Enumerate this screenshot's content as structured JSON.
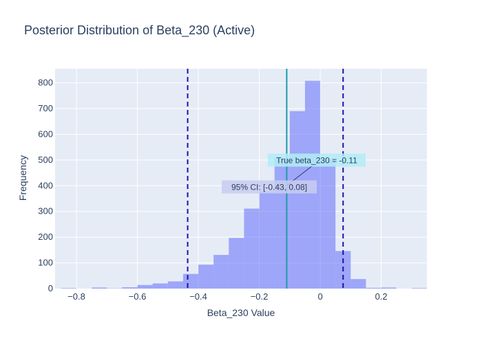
{
  "chart_data": {
    "type": "bar",
    "title": "Posterior Distribution of Beta_230 (Active)",
    "xlabel": "Beta_230 Value",
    "ylabel": "Frequency",
    "xlim": [
      -0.87,
      0.35
    ],
    "ylim": [
      0,
      855
    ],
    "xticks": [
      -0.8,
      -0.6,
      -0.4,
      -0.2,
      0,
      0.2
    ],
    "yticks": [
      0,
      100,
      200,
      300,
      400,
      500,
      600,
      700,
      800
    ],
    "bin_width": 0.05,
    "bins": [
      {
        "x0": -0.85,
        "x1": -0.8,
        "count": 2
      },
      {
        "x0": -0.8,
        "x1": -0.75,
        "count": 0
      },
      {
        "x0": -0.75,
        "x1": -0.7,
        "count": 4
      },
      {
        "x0": -0.7,
        "x1": -0.65,
        "count": 1
      },
      {
        "x0": -0.65,
        "x1": -0.6,
        "count": 5
      },
      {
        "x0": -0.6,
        "x1": -0.55,
        "count": 14
      },
      {
        "x0": -0.55,
        "x1": -0.5,
        "count": 20
      },
      {
        "x0": -0.5,
        "x1": -0.45,
        "count": 28
      },
      {
        "x0": -0.45,
        "x1": -0.4,
        "count": 57
      },
      {
        "x0": -0.4,
        "x1": -0.35,
        "count": 93
      },
      {
        "x0": -0.35,
        "x1": -0.3,
        "count": 131
      },
      {
        "x0": -0.3,
        "x1": -0.25,
        "count": 197
      },
      {
        "x0": -0.25,
        "x1": -0.2,
        "count": 311
      },
      {
        "x0": -0.2,
        "x1": -0.15,
        "count": 378
      },
      {
        "x0": -0.15,
        "x1": -0.1,
        "count": 508
      },
      {
        "x0": -0.1,
        "x1": -0.05,
        "count": 690
      },
      {
        "x0": -0.05,
        "x1": 0.0,
        "count": 808
      },
      {
        "x0": 0.0,
        "x1": 0.05,
        "count": 502
      },
      {
        "x0": 0.05,
        "x1": 0.1,
        "count": 146
      },
      {
        "x0": 0.1,
        "x1": 0.15,
        "count": 37
      },
      {
        "x0": 0.15,
        "x1": 0.2,
        "count": 3
      },
      {
        "x0": 0.2,
        "x1": 0.25,
        "count": 4
      },
      {
        "x0": 0.25,
        "x1": 0.3,
        "count": 0
      },
      {
        "x0": 0.3,
        "x1": 0.35,
        "count": 2
      }
    ],
    "vlines": [
      {
        "name": "ci-lower-line",
        "x": -0.435,
        "color": "#1f0fa6",
        "style": "dash"
      },
      {
        "name": "ci-upper-line",
        "x": 0.075,
        "color": "#1f0fa6",
        "style": "dash"
      },
      {
        "name": "true-value-line",
        "x": -0.11,
        "color": "#1e9bab",
        "style": "solid"
      }
    ],
    "annotations": [
      {
        "name": "true-value-annotation",
        "text": "True beta_230 = -0.11",
        "bg": "#b3ecf7"
      },
      {
        "name": "ci-annotation",
        "text": "95% CI: [-0.43, 0.08]",
        "bg": "#c9cdf0"
      }
    ],
    "bar_color": "#636efa",
    "bar_opacity": 0.55,
    "plot_bg": "#e5ecf6",
    "grid": true,
    "legend": "none"
  }
}
